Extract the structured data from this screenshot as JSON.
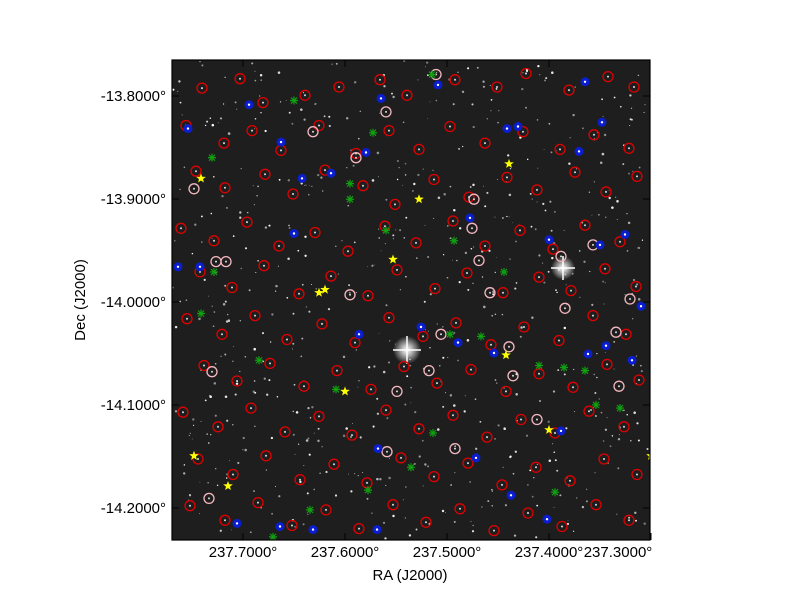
{
  "figure": {
    "xlabel": "RA (J2000)",
    "ylabel": "Dec (J2000)",
    "x_ticks": [
      "237.7000°",
      "237.6000°",
      "237.5000°",
      "237.4000°",
      "237.3000°"
    ],
    "y_ticks": [
      "-13.8000°",
      "-13.9000°",
      "-14.0000°",
      "-14.1000°",
      "-14.2000°"
    ],
    "colors": {
      "sky_background": "#1e1e1e",
      "red_marker": "#e00000",
      "pink_marker": "#f4b8c0",
      "blue_marker": "#0a1ed0",
      "green_marker": "#10a010",
      "yellow_marker": "#ffff00"
    }
  },
  "chart_data": {
    "type": "scatter",
    "x_range": [
      237.744,
      237.266
    ],
    "y_range": [
      -14.228,
      -13.766
    ],
    "grid": false,
    "series": [
      {
        "marker": "red-circle",
        "points": [
          [
            237.714,
            -13.793
          ],
          [
            237.676,
            -13.784
          ],
          [
            237.653,
            -13.807
          ],
          [
            237.611,
            -13.8
          ],
          [
            237.577,
            -13.792
          ],
          [
            237.536,
            -13.785
          ],
          [
            237.509,
            -13.8
          ],
          [
            237.461,
            -13.785
          ],
          [
            237.419,
            -13.792
          ],
          [
            237.39,
            -13.779
          ],
          [
            237.347,
            -13.795
          ],
          [
            237.308,
            -13.782
          ],
          [
            237.282,
            -13.792
          ],
          [
            237.73,
            -13.829
          ],
          [
            237.692,
            -13.846
          ],
          [
            237.664,
            -13.834
          ],
          [
            237.635,
            -13.853
          ],
          [
            237.597,
            -13.829
          ],
          [
            237.56,
            -13.856
          ],
          [
            237.527,
            -13.834
          ],
          [
            237.497,
            -13.852
          ],
          [
            237.466,
            -13.83
          ],
          [
            237.431,
            -13.846
          ],
          [
            237.393,
            -13.835
          ],
          [
            237.356,
            -13.852
          ],
          [
            237.322,
            -13.838
          ],
          [
            237.287,
            -13.851
          ],
          [
            237.72,
            -13.873
          ],
          [
            237.691,
            -13.889
          ],
          [
            237.651,
            -13.876
          ],
          [
            237.623,
            -13.895
          ],
          [
            237.591,
            -13.872
          ],
          [
            237.553,
            -13.887
          ],
          [
            237.521,
            -13.905
          ],
          [
            237.482,
            -13.881
          ],
          [
            237.447,
            -13.898
          ],
          [
            237.409,
            -13.879
          ],
          [
            237.379,
            -13.891
          ],
          [
            237.341,
            -13.874
          ],
          [
            237.31,
            -13.893
          ],
          [
            237.279,
            -13.878
          ],
          [
            237.735,
            -13.928
          ],
          [
            237.702,
            -13.94
          ],
          [
            237.669,
            -13.922
          ],
          [
            237.637,
            -13.945
          ],
          [
            237.601,
            -13.932
          ],
          [
            237.568,
            -13.95
          ],
          [
            237.531,
            -13.926
          ],
          [
            237.5,
            -13.942
          ],
          [
            237.463,
            -13.921
          ],
          [
            237.431,
            -13.945
          ],
          [
            237.396,
            -13.93
          ],
          [
            237.363,
            -13.948
          ],
          [
            237.331,
            -13.925
          ],
          [
            237.296,
            -13.941
          ],
          [
            237.716,
            -13.97
          ],
          [
            237.684,
            -13.985
          ],
          [
            237.652,
            -13.964
          ],
          [
            237.617,
            -13.991
          ],
          [
            237.585,
            -13.974
          ],
          [
            237.548,
            -13.993
          ],
          [
            237.519,
            -13.968
          ],
          [
            237.481,
            -13.986
          ],
          [
            237.449,
            -13.971
          ],
          [
            237.413,
            -13.99
          ],
          [
            237.377,
            -13.975
          ],
          [
            237.345,
            -13.988
          ],
          [
            237.311,
            -13.967
          ],
          [
            237.28,
            -13.984
          ],
          [
            237.729,
            -14.015
          ],
          [
            237.694,
            -14.03
          ],
          [
            237.661,
            -14.012
          ],
          [
            237.629,
            -14.035
          ],
          [
            237.594,
            -14.02
          ],
          [
            237.561,
            -14.038
          ],
          [
            237.527,
            -14.014
          ],
          [
            237.493,
            -14.032
          ],
          [
            237.46,
            -14.019
          ],
          [
            237.425,
            -14.04
          ],
          [
            237.392,
            -14.023
          ],
          [
            237.357,
            -14.036
          ],
          [
            237.323,
            -14.012
          ],
          [
            237.29,
            -14.03
          ],
          [
            237.712,
            -14.06
          ],
          [
            237.679,
            -14.075
          ],
          [
            237.646,
            -14.058
          ],
          [
            237.612,
            -14.08
          ],
          [
            237.579,
            -14.065
          ],
          [
            237.545,
            -14.083
          ],
          [
            237.512,
            -14.061
          ],
          [
            237.479,
            -14.077
          ],
          [
            237.445,
            -14.064
          ],
          [
            237.41,
            -14.085
          ],
          [
            237.377,
            -14.068
          ],
          [
            237.343,
            -14.081
          ],
          [
            237.309,
            -14.059
          ],
          [
            237.277,
            -14.074
          ],
          [
            237.733,
            -14.105
          ],
          [
            237.698,
            -14.119
          ],
          [
            237.665,
            -14.101
          ],
          [
            237.631,
            -14.124
          ],
          [
            237.597,
            -14.109
          ],
          [
            237.564,
            -14.127
          ],
          [
            237.53,
            -14.103
          ],
          [
            237.497,
            -14.121
          ],
          [
            237.463,
            -14.108
          ],
          [
            237.429,
            -14.129
          ],
          [
            237.395,
            -14.112
          ],
          [
            237.361,
            -14.125
          ],
          [
            237.327,
            -14.104
          ],
          [
            237.292,
            -14.119
          ],
          [
            237.718,
            -14.15
          ],
          [
            237.683,
            -14.165
          ],
          [
            237.65,
            -14.147
          ],
          [
            237.616,
            -14.17
          ],
          [
            237.582,
            -14.155
          ],
          [
            237.549,
            -14.173
          ],
          [
            237.515,
            -14.149
          ],
          [
            237.482,
            -14.167
          ],
          [
            237.448,
            -14.154
          ],
          [
            237.414,
            -14.175
          ],
          [
            237.38,
            -14.158
          ],
          [
            237.346,
            -14.171
          ],
          [
            237.312,
            -14.15
          ],
          [
            237.279,
            -14.165
          ],
          [
            237.726,
            -14.195
          ],
          [
            237.691,
            -14.209
          ],
          [
            237.658,
            -14.192
          ],
          [
            237.624,
            -14.214
          ],
          [
            237.59,
            -14.199
          ],
          [
            237.557,
            -14.217
          ],
          [
            237.523,
            -14.194
          ],
          [
            237.49,
            -14.211
          ],
          [
            237.456,
            -14.198
          ],
          [
            237.422,
            -14.219
          ],
          [
            237.388,
            -14.202
          ],
          [
            237.354,
            -14.215
          ],
          [
            237.32,
            -14.194
          ],
          [
            237.287,
            -14.209
          ]
        ]
      },
      {
        "marker": "pink-circle",
        "points": [
          [
            237.7,
            -13.96
          ],
          [
            237.69,
            -13.96
          ],
          [
            237.566,
            -13.992
          ],
          [
            237.56,
            -13.86
          ],
          [
            237.603,
            -13.835
          ],
          [
            237.53,
            -13.816
          ],
          [
            237.442,
            -13.9
          ],
          [
            237.444,
            -13.928
          ],
          [
            237.437,
            -13.959
          ],
          [
            237.426,
            -13.99
          ],
          [
            237.407,
            -14.042
          ],
          [
            237.403,
            -14.07
          ],
          [
            237.379,
            -14.112
          ],
          [
            237.355,
            -13.955
          ],
          [
            237.351,
            -14.005
          ],
          [
            237.323,
            -13.944
          ],
          [
            237.3,
            -14.028
          ],
          [
            237.297,
            -14.08
          ],
          [
            237.286,
            -13.996
          ],
          [
            237.519,
            -14.085
          ],
          [
            237.529,
            -14.143
          ],
          [
            237.487,
            -14.065
          ],
          [
            237.461,
            -14.14
          ],
          [
            237.475,
            -14.03
          ],
          [
            237.704,
            -14.066
          ],
          [
            237.707,
            -14.188
          ],
          [
            237.722,
            -13.89
          ],
          [
            237.48,
            -13.78
          ]
        ]
      },
      {
        "marker": "blue-circle",
        "points": [
          [
            237.728,
            -13.832
          ],
          [
            237.667,
            -13.809
          ],
          [
            237.635,
            -13.845
          ],
          [
            237.585,
            -13.875
          ],
          [
            237.55,
            -13.855
          ],
          [
            237.535,
            -13.803
          ],
          [
            237.478,
            -13.79
          ],
          [
            237.446,
            -13.918
          ],
          [
            237.409,
            -13.832
          ],
          [
            237.398,
            -13.83
          ],
          [
            237.367,
            -13.939
          ],
          [
            237.337,
            -13.854
          ],
          [
            237.331,
            -13.787
          ],
          [
            237.314,
            -13.826
          ],
          [
            237.316,
            -13.944
          ],
          [
            237.291,
            -13.934
          ],
          [
            237.275,
            -14.003
          ],
          [
            237.284,
            -14.055
          ],
          [
            237.31,
            -14.041
          ],
          [
            237.328,
            -14.049
          ],
          [
            237.355,
            -14.123
          ],
          [
            237.369,
            -14.208
          ],
          [
            237.422,
            -14.048
          ],
          [
            237.44,
            -14.149
          ],
          [
            237.405,
            -14.185
          ],
          [
            237.458,
            -14.038
          ],
          [
            237.495,
            -14.023
          ],
          [
            237.538,
            -14.14
          ],
          [
            237.539,
            -14.218
          ],
          [
            237.557,
            -14.03
          ],
          [
            237.603,
            -14.218
          ],
          [
            237.636,
            -14.215
          ],
          [
            237.679,
            -14.212
          ],
          [
            237.716,
            -13.965
          ],
          [
            237.738,
            -13.965
          ],
          [
            237.614,
            -13.88
          ],
          [
            237.622,
            -13.933
          ]
        ]
      },
      {
        "marker": "green-star",
        "points": [
          [
            237.704,
            -13.86
          ],
          [
            237.702,
            -13.97
          ],
          [
            237.715,
            -14.01
          ],
          [
            237.657,
            -14.055
          ],
          [
            237.622,
            -13.805
          ],
          [
            237.566,
            -13.885
          ],
          [
            237.566,
            -13.9
          ],
          [
            237.543,
            -13.836
          ],
          [
            237.466,
            -14.03
          ],
          [
            237.462,
            -13.94
          ],
          [
            237.435,
            -14.032
          ],
          [
            237.412,
            -13.97
          ],
          [
            237.377,
            -14.06
          ],
          [
            237.352,
            -14.062
          ],
          [
            237.331,
            -14.065
          ],
          [
            237.32,
            -14.098
          ],
          [
            237.296,
            -14.101
          ],
          [
            237.484,
            -13.78
          ],
          [
            237.483,
            -14.125
          ],
          [
            237.505,
            -14.158
          ],
          [
            237.53,
            -13.93
          ],
          [
            237.548,
            -14.18
          ],
          [
            237.58,
            -14.083
          ],
          [
            237.606,
            -14.199
          ],
          [
            237.643,
            -14.225
          ],
          [
            237.361,
            -14.182
          ]
        ]
      },
      {
        "marker": "yellow-star",
        "points": [
          [
            237.715,
            -13.88
          ],
          [
            237.407,
            -13.866
          ],
          [
            237.497,
            -13.9
          ],
          [
            237.523,
            -13.958
          ],
          [
            237.591,
            -13.987
          ],
          [
            237.597,
            -13.99
          ],
          [
            237.41,
            -14.05
          ],
          [
            237.571,
            -14.085
          ],
          [
            237.367,
            -14.122
          ],
          [
            237.265,
            -14.147
          ],
          [
            237.722,
            -14.147
          ],
          [
            237.688,
            -14.176
          ]
        ]
      }
    ]
  }
}
